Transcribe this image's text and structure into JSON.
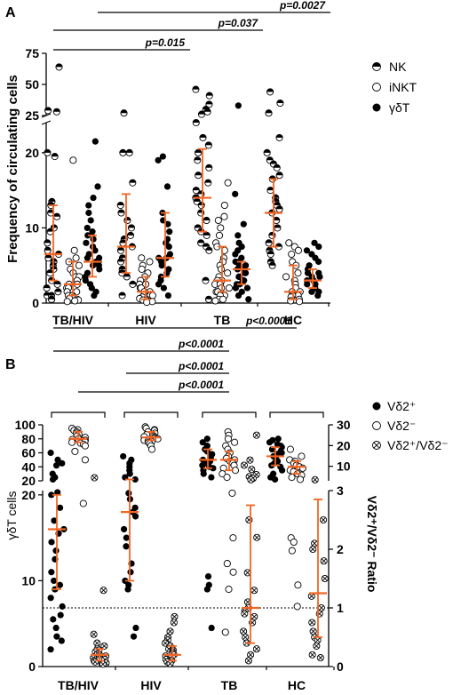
{
  "colors": {
    "orange": "#f26522",
    "black": "#000000",
    "white": "#ffffff"
  },
  "chart_data": [
    {
      "panel": "A",
      "type": "scatter",
      "ylabel": "Frequency of circulating cells",
      "categories": [
        "TB/HIV",
        "HIV",
        "TB",
        "HC"
      ],
      "y_ticks_lower": [
        "0",
        "10",
        "20"
      ],
      "y_ticks_upper": [
        "25",
        "50",
        "75"
      ],
      "ylim_lower": [
        0,
        24
      ],
      "ylim_upper": [
        25,
        75
      ],
      "legend": [
        {
          "name": "NK",
          "marker": "half-filled-circle"
        },
        {
          "name": "iNKT",
          "marker": "open-circle"
        },
        {
          "name": "γδT",
          "marker": "filled-circle"
        }
      ],
      "series": [
        {
          "name": "NK",
          "group": "TB/HIV",
          "median": 6.5,
          "iqr": [
            3.0,
            13.0
          ],
          "values": [
            64,
            29,
            28,
            20,
            19.5,
            13.5,
            13,
            12,
            11.5,
            10,
            9.5,
            8,
            7,
            6.5,
            6,
            5.5,
            5,
            4.5,
            4,
            3,
            2.5,
            2,
            1.5,
            1,
            1,
            0.5,
            0.5
          ]
        },
        {
          "name": "iNKT",
          "group": "TB/HIV",
          "median": 2.5,
          "iqr": [
            1.0,
            5.5
          ],
          "values": [
            19,
            7,
            6,
            5.5,
            5,
            4.5,
            4,
            3.5,
            3.5,
            3,
            2.5,
            2.5,
            2,
            2,
            1.5,
            1.5,
            1,
            1,
            0.8,
            0.6,
            0.5,
            0.4,
            0.3,
            0.2
          ]
        },
        {
          "name": "γδT",
          "group": "TB/HIV",
          "median": 5.5,
          "iqr": [
            3.5,
            9.0
          ],
          "values": [
            21.5,
            15.5,
            14,
            13,
            12,
            11,
            10,
            9.5,
            9,
            8.5,
            8,
            7.5,
            7,
            6.5,
            6,
            6,
            5.5,
            5.5,
            5,
            5,
            4.5,
            4,
            3.5,
            3,
            2.5,
            2,
            1.5,
            1
          ]
        },
        {
          "name": "NK",
          "group": "HIV",
          "median": 7.5,
          "iqr": [
            4.0,
            14.5
          ],
          "values": [
            27,
            20,
            20,
            16,
            13,
            12,
            11,
            10,
            9,
            8.5,
            8,
            7.5,
            7,
            6,
            5.5,
            4.5,
            4,
            3.5,
            2.5,
            1
          ]
        },
        {
          "name": "iNKT",
          "group": "HIV",
          "median": 1.5,
          "iqr": [
            0.5,
            3.5
          ],
          "values": [
            6,
            5.5,
            5,
            4.5,
            4,
            3.5,
            3,
            2.5,
            2.5,
            2,
            2,
            1.5,
            1.5,
            1,
            1,
            0.8,
            0.6,
            0.5,
            0.4,
            0.3,
            0.2,
            0.1
          ]
        },
        {
          "name": "γδT",
          "group": "HIV",
          "median": 6.0,
          "iqr": [
            3.5,
            12.0
          ],
          "values": [
            19.5,
            19,
            15.5,
            12,
            11,
            10.5,
            9.5,
            8.5,
            8,
            7.5,
            6.5,
            6,
            6,
            5.5,
            5,
            4.5,
            4,
            3.5,
            3,
            2.5,
            2,
            1
          ]
        },
        {
          "name": "NK",
          "group": "TB",
          "median": 14.0,
          "iqr": [
            9.5,
            20.5
          ],
          "values": [
            46,
            41,
            34,
            30,
            28,
            26,
            24,
            22,
            21,
            20,
            19,
            18,
            17,
            16,
            15,
            14.5,
            14,
            13.5,
            13,
            12,
            11,
            10,
            9.5,
            9,
            8,
            7.5,
            7,
            3,
            0.5
          ]
        },
        {
          "name": "iNKT",
          "group": "TB",
          "median": 3.0,
          "iqr": [
            1.5,
            7.5
          ],
          "values": [
            16,
            13,
            11.5,
            11,
            10,
            9,
            8,
            7.5,
            7,
            6,
            5.5,
            5,
            4.5,
            4,
            3.5,
            3,
            3,
            2.5,
            2.5,
            2,
            2,
            1.5,
            1.5,
            1,
            1,
            0.5,
            0.5,
            0.3
          ]
        },
        {
          "name": "γδT",
          "group": "TB",
          "median": 4.5,
          "iqr": [
            2.5,
            5.5
          ],
          "values": [
            33,
            14.5,
            10.5,
            9,
            8,
            7.5,
            7,
            6.5,
            6,
            5.5,
            5.5,
            5,
            5,
            4.5,
            4.5,
            4,
            4,
            3.5,
            3.5,
            3,
            3,
            2.5,
            2.5,
            2,
            2,
            1.5,
            1,
            0.5
          ]
        },
        {
          "name": "NK",
          "group": "HC",
          "median": 12.0,
          "iqr": [
            7.5,
            16.5
          ],
          "values": [
            44,
            35,
            27,
            22,
            20,
            19,
            18.5,
            18,
            17,
            16.5,
            15,
            14,
            13.5,
            13,
            12.5,
            12,
            11,
            10,
            9,
            8,
            7.5,
            7,
            6.5,
            5.5,
            5
          ]
        },
        {
          "name": "iNKT",
          "group": "HC",
          "median": 1.5,
          "iqr": [
            0.5,
            5.0
          ],
          "values": [
            8,
            7.5,
            7,
            6.5,
            5.5,
            5,
            4,
            3.5,
            3,
            2.5,
            2,
            1.5,
            1.5,
            1,
            1,
            0.8,
            0.5,
            0.3,
            0.2
          ]
        },
        {
          "name": "γδT",
          "group": "HC",
          "median": 3.0,
          "iqr": [
            2.0,
            4.5
          ],
          "values": [
            8,
            7.5,
            7,
            6.5,
            6,
            5.5,
            5,
            4.5,
            4,
            4,
            3.5,
            3.5,
            3,
            3,
            2.5,
            2.5,
            2,
            2,
            1.5,
            1.5,
            1
          ]
        }
      ],
      "significance": [
        {
          "from": "TB/HIV",
          "to": "HC",
          "label": "p=0.0027"
        },
        {
          "from": "TB/HIV",
          "to": "TB",
          "label": "p=0.037"
        },
        {
          "from": "TB/HIV",
          "to": "HIV",
          "label": "p=0.015"
        }
      ]
    },
    {
      "panel": "B",
      "type": "scatter",
      "ylabel": "γδT cells",
      "y2label": "Vδ2⁺/Vδ2⁻ Ratio",
      "categories": [
        "TB/HIV",
        "HIV",
        "TB",
        "HC"
      ],
      "y_ticks_lower": [
        "0",
        "10",
        "20"
      ],
      "y_ticks_upper": [
        "20",
        "40",
        "60",
        "80",
        "100"
      ],
      "y2_ticks_lower": [
        "0",
        "1",
        "2",
        "3"
      ],
      "y2_ticks_upper": [
        "10",
        "20",
        "30"
      ],
      "ylim_lower": [
        0,
        20.5
      ],
      "ylim_upper": [
        20,
        100
      ],
      "y2lim_lower": [
        0,
        3
      ],
      "y2lim_upper": [
        3,
        30
      ],
      "reference_line_ratio": 1,
      "legend": [
        {
          "name": "Vδ2⁺",
          "marker": "filled-circle"
        },
        {
          "name": "Vδ2⁻",
          "marker": "open-circle"
        },
        {
          "name": "Vδ2⁺/Vδ2⁻",
          "marker": "crossed-circle"
        }
      ],
      "series": [
        {
          "name": "Vδ2⁺",
          "group": "TB/HIV",
          "median": 16,
          "iqr": [
            9,
            20
          ],
          "values": [
            60,
            50,
            45,
            42,
            30,
            25,
            22,
            20.3,
            20,
            18.5,
            17,
            16,
            15.5,
            14.5,
            13.5,
            12.5,
            11,
            10,
            9.5,
            9,
            8,
            7,
            6,
            5.5,
            4.5,
            3.5,
            3,
            2
          ]
        },
        {
          "name": "Vδ2⁻",
          "group": "TB/HIV",
          "median": 80,
          "iqr": [
            75,
            90
          ],
          "values": [
            95,
            93,
            92,
            90,
            88,
            86,
            84,
            82,
            80,
            79,
            78,
            77,
            76,
            75,
            74,
            72,
            70,
            62,
            50,
            19
          ]
        },
        {
          "name": "Vδ2⁺/Vδ2⁻",
          "group": "TB/HIV",
          "median": 0.2,
          "iqr": [
            0.1,
            0.3
          ],
          "values": [
            4.5,
            1.3,
            0.55,
            0.4,
            0.35,
            0.3,
            0.28,
            0.25,
            0.22,
            0.2,
            0.18,
            0.15,
            0.12,
            0.1,
            0.08,
            0.06,
            0.05,
            0.04
          ]
        },
        {
          "name": "Vδ2⁺",
          "group": "HIV",
          "median": 18,
          "iqr": [
            10,
            22
          ],
          "values": [
            55,
            50,
            45,
            40,
            35,
            30,
            25,
            22,
            20.2,
            19.5,
            18.5,
            18,
            17.5,
            16,
            15,
            14,
            12,
            11,
            10,
            9.5,
            9,
            4.5,
            3.5
          ]
        },
        {
          "name": "Vδ2⁻",
          "group": "HIV",
          "median": 82,
          "iqr": [
            78,
            90
          ],
          "values": [
            97,
            95,
            93,
            92,
            90,
            88,
            86,
            84,
            83,
            82,
            81,
            80,
            79,
            78,
            77,
            76,
            75,
            73,
            70,
            65
          ]
        },
        {
          "name": "Vδ2⁺/Vδ2⁻",
          "group": "HIV",
          "median": 0.2,
          "iqr": [
            0.1,
            0.35
          ],
          "values": [
            0.85,
            0.75,
            0.6,
            0.5,
            0.45,
            0.4,
            0.35,
            0.3,
            0.28,
            0.25,
            0.22,
            0.2,
            0.18,
            0.15,
            0.12,
            0.1,
            0.08,
            0.05
          ]
        },
        {
          "name": "Vδ2⁺",
          "group": "TB",
          "median": 50,
          "iqr": [
            38,
            65
          ],
          "values": [
            80,
            75,
            70,
            65,
            62,
            58,
            55,
            52,
            50,
            48,
            45,
            42,
            40,
            38,
            35,
            30,
            25,
            10.5,
            9.5,
            9,
            4.5
          ]
        },
        {
          "name": "Vδ2⁻",
          "group": "TB",
          "median": 50,
          "iqr": [
            35,
            62
          ],
          "values": [
            90,
            85,
            80,
            75,
            70,
            65,
            60,
            55,
            52,
            50,
            48,
            45,
            42,
            38,
            35,
            30,
            25,
            20.2,
            15,
            12,
            11,
            9,
            4
          ]
        },
        {
          "name": "Vδ2⁺/Vδ2⁻",
          "group": "TB",
          "median": 1.0,
          "iqr": [
            0.4,
            2.75
          ],
          "values": [
            25,
            13,
            10.5,
            8.5,
            6,
            5,
            4.2,
            3.5,
            2.5,
            2.2,
            1.6,
            1.3,
            1.1,
            1.0,
            0.95,
            0.9,
            0.85,
            0.75,
            0.6,
            0.5,
            0.4,
            0.3,
            0.2,
            0.1
          ]
        },
        {
          "name": "Vδ2⁺",
          "group": "HC",
          "median": 55,
          "iqr": [
            42,
            68
          ],
          "values": [
            80,
            78,
            75,
            72,
            70,
            68,
            65,
            62,
            60,
            58,
            55,
            52,
            50,
            48,
            45,
            42,
            40,
            35,
            30,
            25,
            22
          ]
        },
        {
          "name": "Vδ2⁻",
          "group": "HC",
          "median": 40,
          "iqr": [
            30,
            48
          ],
          "values": [
            65,
            55,
            50,
            48,
            45,
            42,
            40,
            38,
            35,
            33,
            30,
            28,
            25,
            22,
            15,
            14.5,
            13.5,
            9.5,
            7
          ]
        },
        {
          "name": "Vδ2⁺/Vδ2⁻",
          "group": "HC",
          "median": 1.25,
          "iqr": [
            0.5,
            2.85
          ],
          "values": [
            3.5,
            2.5,
            2.1,
            2.0,
            1.8,
            1.5,
            1.2,
            1.0,
            0.9,
            0.75,
            0.6,
            0.5,
            0.45,
            0.35,
            0.2,
            0.15
          ]
        }
      ],
      "significance": [
        {
          "from": "TB/HIV",
          "to": "HC",
          "label": "p<0.0001"
        },
        {
          "from": "TB/HIV",
          "to": "TB",
          "label": "p<0.0001"
        },
        {
          "from": "HIV",
          "to": "TB",
          "label": "p<0.0001"
        },
        {
          "from": "TB/HIV",
          "to": "TB",
          "label": "p<0.0001"
        }
      ]
    }
  ]
}
